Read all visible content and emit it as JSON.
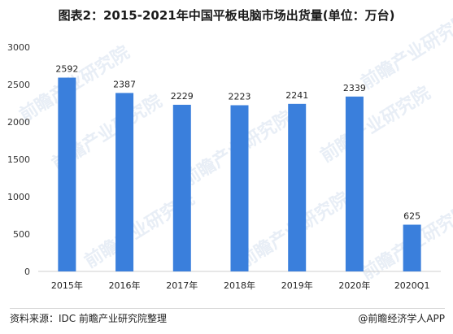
{
  "title": "图表2：2015-2021年中国平板电脑市场出货量(单位：万台)",
  "footer": {
    "source": "资料来源：IDC 前瞻产业研究院整理",
    "brand": "@前瞻经济学人APP"
  },
  "watermark": "前瞻产业研究院",
  "colors": {
    "bar": "#3a7fdc",
    "axis": "#cfcfcf",
    "text": "#222222"
  },
  "chart_data": {
    "type": "bar",
    "title": "图表2：2015-2021年中国平板电脑市场出货量(单位：万台)",
    "categories": [
      "2015年",
      "2016年",
      "2017年",
      "2018年",
      "2019年",
      "2020年",
      "2020Q1"
    ],
    "values": [
      2592,
      2387,
      2229,
      2223,
      2241,
      2339,
      625
    ],
    "ylim": [
      0,
      3000
    ],
    "yticks": [
      0,
      500,
      1000,
      1500,
      2000,
      2500,
      3000
    ],
    "xlabel": "",
    "ylabel": "",
    "grid": false
  }
}
